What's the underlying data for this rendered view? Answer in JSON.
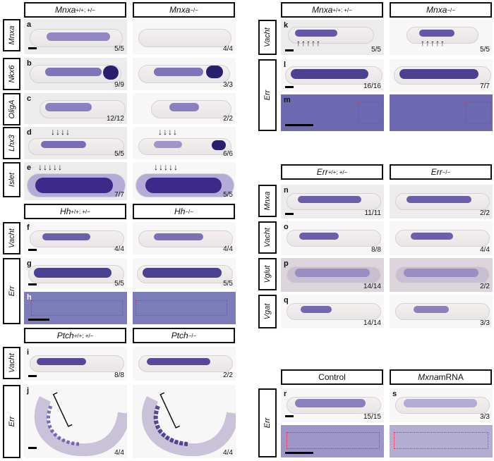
{
  "headers": {
    "mnxa_wt": {
      "gene": "Mnxa",
      "sup": "+/+; +/−"
    },
    "mnxa_mut": {
      "gene": "Mnxa",
      "sup": "−/−"
    },
    "hh_wt": {
      "gene": "Hh",
      "sup": "+/+; +/−"
    },
    "hh_mut": {
      "gene": "Hh",
      "sup": "−/−"
    },
    "ptch_wt": {
      "gene": "Ptch",
      "sup": "+/+; +/−"
    },
    "ptch_mut": {
      "gene": "Ptch",
      "sup": "−/−"
    },
    "mnxa_wt2": {
      "gene": "Mnxa",
      "sup": "+/+; +/−"
    },
    "mnxa_mut2": {
      "gene": "Mnxa",
      "sup": "−/−"
    },
    "err_wt": {
      "gene": "Err",
      "sup": "+/+; +/−"
    },
    "err_mut": {
      "gene": "Err",
      "sup": "−/−"
    },
    "control": {
      "gene": "Control",
      "sup": ""
    },
    "mxna_mrna": {
      "gene": "Mxna",
      "sup": "",
      "suffix": " mRNA"
    }
  },
  "row_labels": {
    "a": "Mnxa",
    "b": "Nkx6",
    "c": "OligA",
    "d": "Lhx3",
    "e": "Islet",
    "fi_vacht": "Vacht",
    "gh_err": "Err",
    "i_vacht": "Vacht",
    "j_err": "Err",
    "k_vacht": "Vacht",
    "lm_err": "Err",
    "n": "Mnxa",
    "o": "Vacht",
    "p": "Vglut",
    "q": "Vgat",
    "rs_err": "Err"
  },
  "panels": {
    "a": {
      "letter": "a",
      "left": "",
      "right": "5/5",
      "right2": "4/4"
    },
    "b": {
      "letter": "b",
      "right": "9/9",
      "right2": "3/3"
    },
    "c": {
      "letter": "c",
      "right": "12/12",
      "right2": "2/2"
    },
    "d": {
      "letter": "d",
      "right": "5/5",
      "right2": "6/6"
    },
    "e": {
      "letter": "e",
      "right": "7/7",
      "right2": "5/5"
    },
    "f": {
      "letter": "f",
      "right": "4/4",
      "right2": "4/4"
    },
    "g": {
      "letter": "g",
      "right": "5/5",
      "right2": "5/5"
    },
    "h": {
      "letter": "h"
    },
    "i": {
      "letter": "i",
      "right": "8/8",
      "right2": "2/2"
    },
    "j": {
      "letter": "j",
      "right": "4/4",
      "right2": "4/4"
    },
    "k": {
      "letter": "k",
      "right": "5/5",
      "right2": "5/5"
    },
    "l": {
      "letter": "l",
      "right": "16/16",
      "right2": "7/7"
    },
    "m": {
      "letter": "m"
    },
    "n": {
      "letter": "n",
      "right": "11/11",
      "right2": "2/2"
    },
    "o": {
      "letter": "o",
      "right": "8/8",
      "right2": "4/4"
    },
    "p": {
      "letter": "p",
      "right": "14/14",
      "right2": "2/2"
    },
    "q": {
      "letter": "q",
      "right": "14/14",
      "right2": "3/3"
    },
    "r": {
      "letter": "r",
      "right": "15/15"
    },
    "s": {
      "letter": "s",
      "right": "3/3"
    }
  },
  "arrows": {
    "four": "↓↓↓↓",
    "five": "↓↓↓↓↓",
    "up5": "↑↑↑↑↑"
  },
  "colors": {
    "stain": "#3b2a8a",
    "box": "#e0304a",
    "frame": "#111111"
  }
}
